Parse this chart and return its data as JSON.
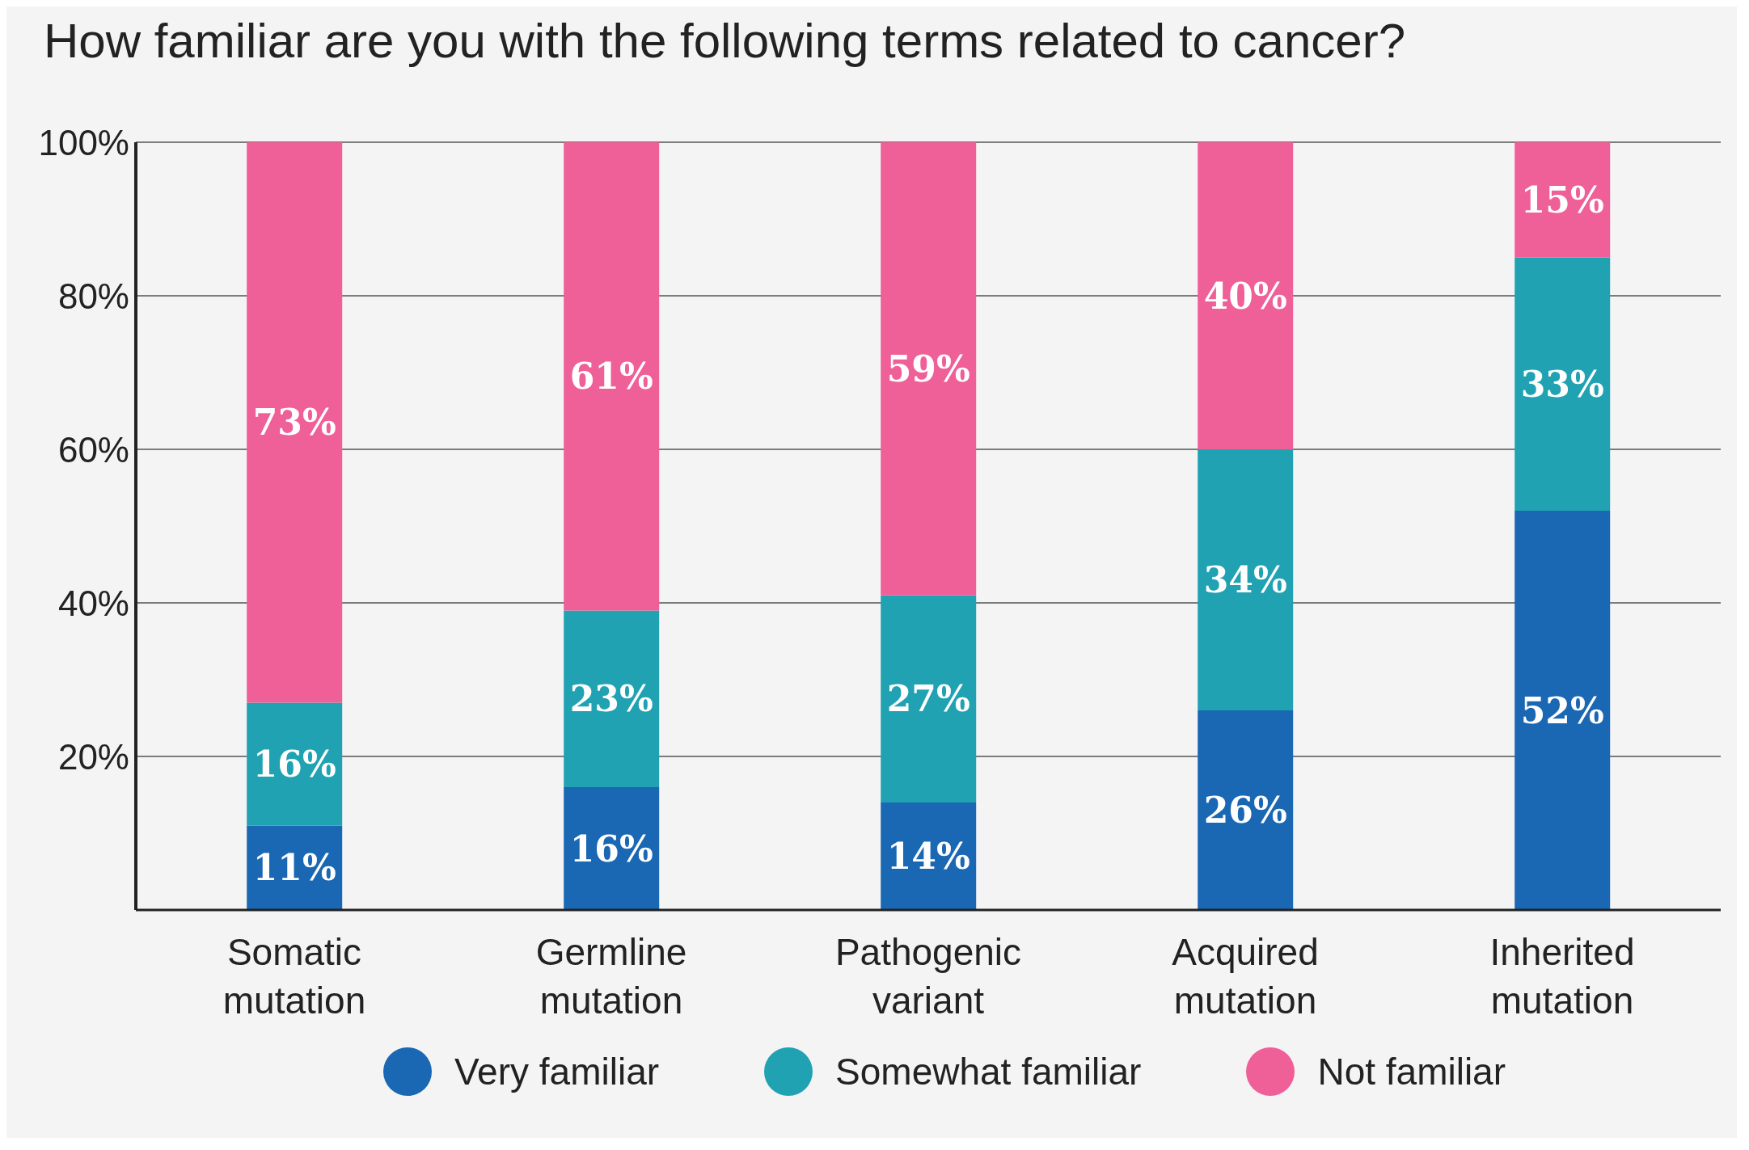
{
  "chart_data": {
    "type": "bar",
    "title": "How familiar are you with the following terms related to cancer?",
    "categories": [
      "Somatic mutation",
      "Germline mutation",
      "Pathogenic variant",
      "Acquired mutation",
      "Inherited mutation"
    ],
    "stacked": true,
    "series": [
      {
        "name": "Very familiar",
        "color": "#1a67b3",
        "values": [
          11,
          16,
          14,
          26,
          52
        ],
        "value_labels": [
          "11%",
          "16%",
          "14%",
          "26%",
          "52%"
        ]
      },
      {
        "name": "Somewhat familiar",
        "color": "#20a2b2",
        "values": [
          16,
          23,
          27,
          34,
          33
        ],
        "value_labels": [
          "16%",
          "23%",
          "27%",
          "34%",
          "33%"
        ]
      },
      {
        "name": "Not familiar",
        "color": "#ef5f98",
        "values": [
          73,
          61,
          59,
          40,
          15
        ],
        "value_labels": [
          "73%",
          "61%",
          "59%",
          "40%",
          "15%"
        ]
      }
    ],
    "ylim": [
      0,
      100
    ],
    "yticks": [
      {
        "value": 20,
        "label": "20%"
      },
      {
        "value": 40,
        "label": "40%"
      },
      {
        "value": 60,
        "label": "60%"
      },
      {
        "value": 80,
        "label": "80%"
      },
      {
        "value": 100,
        "label": "100%"
      }
    ],
    "grid": "y",
    "legend": "bottom"
  }
}
